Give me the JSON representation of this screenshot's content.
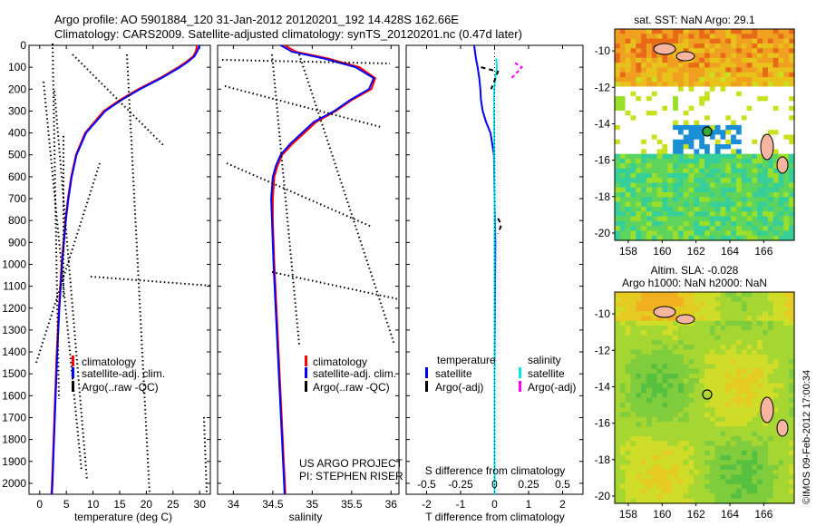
{
  "header": {
    "line1": "Argo profile: AO 5901884_120 31-Jan-2012 20120201_192 14.428S 162.66E",
    "line2": "Climatology: CARS2009. Satellite-adjusted climatology: synTS_20120201.nc (0.47d later)"
  },
  "depth_axis": {
    "ylim": [
      0,
      2050
    ],
    "ticks": [
      0,
      100,
      200,
      300,
      400,
      500,
      600,
      700,
      800,
      900,
      1000,
      1100,
      1200,
      1300,
      1400,
      1500,
      1600,
      1700,
      1800,
      1900,
      2000
    ]
  },
  "colors": {
    "climatology": "#ff0000",
    "satellite": "#0000ff",
    "argo": "#000000",
    "sal_satellite": "#00e5ee",
    "sal_argo": "#ff00ff"
  },
  "chart_data": [
    {
      "id": "temperature",
      "type": "line",
      "xlabel": "temperature (deg C)",
      "xlim": [
        -2,
        32
      ],
      "xticks": [
        0,
        5,
        10,
        15,
        20,
        25,
        30
      ],
      "legend": [
        "climatology",
        "satellite-adj. clim.",
        "Argo(..raw -QC)"
      ],
      "series": [
        {
          "name": "climatology",
          "depth": [
            0,
            25,
            50,
            75,
            100,
            150,
            200,
            250,
            300,
            400,
            500,
            600,
            700,
            800,
            1000,
            1200,
            1400,
            1600,
            1800,
            2000,
            2050
          ],
          "values": [
            29.5,
            29.3,
            28.8,
            27.5,
            26.0,
            22.5,
            18.5,
            15.0,
            12.0,
            8.5,
            6.8,
            5.9,
            5.3,
            4.8,
            4.1,
            3.6,
            3.2,
            2.9,
            2.6,
            2.3,
            2.2
          ]
        },
        {
          "name": "satellite-adj. clim.",
          "depth": [
            0,
            25,
            50,
            75,
            100,
            150,
            200,
            250,
            300,
            400,
            500,
            600,
            700,
            800,
            1000,
            1200,
            1400,
            1600,
            1800,
            2000,
            2050
          ],
          "values": [
            30.0,
            29.6,
            29.0,
            27.8,
            26.3,
            22.8,
            18.8,
            15.3,
            12.3,
            8.7,
            6.9,
            6.0,
            5.4,
            4.9,
            4.2,
            3.7,
            3.3,
            3.0,
            2.7,
            2.4,
            2.3
          ]
        }
      ]
    },
    {
      "id": "salinity",
      "type": "line",
      "xlabel": "salinity",
      "xlim": [
        33.8,
        36.1
      ],
      "xticks": [
        34,
        34.5,
        35,
        35.5,
        36
      ],
      "legend": [
        "climatology",
        "satellite-adj. clim.",
        "Argo(..raw -QC)"
      ],
      "annotation": [
        "US ARGO PROJECT",
        "PI: STEPHEN RISER"
      ],
      "series": [
        {
          "name": "climatology",
          "depth": [
            0,
            30,
            60,
            100,
            150,
            200,
            250,
            300,
            350,
            400,
            450,
            500,
            550,
            600,
            700,
            800,
            1000,
            1300,
            1600,
            1900,
            2050
          ],
          "values": [
            34.65,
            34.8,
            35.2,
            35.6,
            35.8,
            35.75,
            35.5,
            35.3,
            35.05,
            34.9,
            34.75,
            34.62,
            34.56,
            34.52,
            34.5,
            34.5,
            34.52,
            34.56,
            34.6,
            34.64,
            34.66
          ]
        },
        {
          "name": "satellite-adj. clim.",
          "depth": [
            0,
            30,
            60,
            100,
            150,
            200,
            250,
            300,
            350,
            400,
            450,
            500,
            550,
            600,
            700,
            800,
            1000,
            1300,
            1600,
            1900,
            2050
          ],
          "values": [
            34.6,
            34.75,
            35.15,
            35.55,
            35.78,
            35.72,
            35.48,
            35.28,
            35.02,
            34.87,
            34.72,
            34.6,
            34.54,
            34.5,
            34.48,
            34.49,
            34.51,
            34.55,
            34.59,
            34.63,
            34.65
          ]
        }
      ]
    },
    {
      "id": "difference",
      "type": "line",
      "xlabel_bottom": "T difference from climatology",
      "xlabel_top": "S difference from climatology",
      "xlim": [
        -2.6,
        2.6
      ],
      "xticks": [
        -2,
        -1,
        0,
        1,
        2
      ],
      "top_ticks": [
        "-0.5",
        "-0.25",
        "0",
        "0.25",
        "0.5"
      ],
      "legend": {
        "temperature": "temperature",
        "salinity": "salinity",
        "satellite": "satellite",
        "argo": "Argo(-adj)"
      },
      "series": [
        {
          "name": "T satellite",
          "depth": [
            0,
            60,
            100,
            150,
            200,
            250,
            300,
            350,
            400,
            500,
            700,
            900,
            1200,
            1500,
            1800,
            2050
          ],
          "values": [
            -0.6,
            -0.55,
            -0.5,
            -0.45,
            -0.42,
            -0.4,
            -0.35,
            -0.25,
            -0.12,
            -0.02,
            0.0,
            0.02,
            0.01,
            0.0,
            0.0,
            0.0
          ]
        },
        {
          "name": "S satellite",
          "depth": [
            60,
            100,
            150,
            200,
            250,
            300,
            400,
            500,
            700,
            900,
            1200,
            2050
          ],
          "values": [
            0.05,
            0.07,
            0.02,
            -0.01,
            -0.02,
            -0.015,
            -0.01,
            -0.005,
            0.0,
            0.0,
            0.0,
            0.0
          ]
        }
      ]
    }
  ],
  "maps": [
    {
      "id": "sst-map",
      "title": [
        "sat. SST: NaN Argo: 29.1"
      ],
      "yticks": [
        -10,
        -12,
        -14,
        -16,
        -18,
        -20
      ],
      "xticks": [
        158,
        160,
        162,
        164,
        166
      ]
    },
    {
      "id": "sla-map",
      "title": [
        "Altim. SLA: -0.028",
        "Argo h1000: NaN h2000: NaN"
      ],
      "yticks": [
        -10,
        -12,
        -14,
        -16,
        -18,
        -20
      ],
      "xticks": [
        158,
        160,
        162,
        164,
        166
      ]
    }
  ],
  "footer": {
    "credit": "©IMOS 09-Feb-2012 17:00:34"
  }
}
